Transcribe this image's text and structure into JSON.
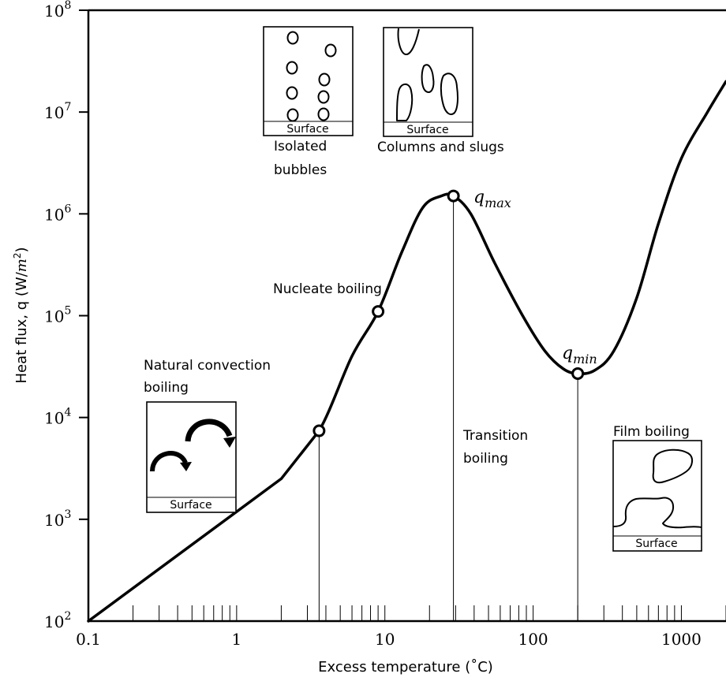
{
  "chart_data": {
    "type": "line",
    "xscale": "log",
    "yscale": "log",
    "xlim": [
      0.1,
      2000
    ],
    "ylim": [
      100,
      100000000
    ],
    "xlabel": "Excess temperature (˚C)",
    "ylabel_main": "Heat flux, q (W/",
    "ylabel_unit": "m",
    "ylabel_exp": "2",
    "ylabel_close": ")",
    "x_ticks": [
      {
        "value": 0.1,
        "label": "0.1"
      },
      {
        "value": 1,
        "label": "1"
      },
      {
        "value": 10,
        "label": "10"
      },
      {
        "value": 100,
        "label": "100"
      },
      {
        "value": 1000,
        "label": "1000"
      }
    ],
    "y_ticks": [
      {
        "value": 100,
        "base": "10",
        "exp": "2"
      },
      {
        "value": 1000,
        "base": "10",
        "exp": "3"
      },
      {
        "value": 10000,
        "base": "10",
        "exp": "4"
      },
      {
        "value": 100000,
        "base": "10",
        "exp": "5"
      },
      {
        "value": 1000000,
        "base": "10",
        "exp": "6"
      },
      {
        "value": 10000000,
        "base": "10",
        "exp": "7"
      },
      {
        "value": 100000000,
        "base": "10",
        "exp": "8"
      }
    ],
    "series": [
      {
        "points": [
          [
            0.1,
            100
          ],
          [
            2.0,
            2500
          ],
          [
            3.6,
            7400
          ],
          [
            6.0,
            40000
          ],
          [
            9.0,
            110000
          ],
          [
            13,
            420000
          ],
          [
            18,
            1150000
          ],
          [
            24,
            1500000
          ],
          [
            29,
            1500000
          ],
          [
            38,
            1000000
          ],
          [
            55,
            330000
          ],
          [
            85,
            100000
          ],
          [
            120,
            45000
          ],
          [
            160,
            30000
          ],
          [
            200,
            27000
          ],
          [
            260,
            29000
          ],
          [
            350,
            45000
          ],
          [
            500,
            150000
          ],
          [
            700,
            800000
          ],
          [
            1000,
            3500000
          ],
          [
            1500,
            10000000
          ],
          [
            2000,
            20000000
          ]
        ]
      }
    ],
    "markers": [
      {
        "x": 3.6,
        "y": 7400
      },
      {
        "x": 9.0,
        "y": 110000
      },
      {
        "x": 29,
        "y": 1500000
      },
      {
        "x": 200,
        "y": 27000
      }
    ],
    "vertical_lines": [
      {
        "x": 3.6,
        "y": 7400
      },
      {
        "x": 29,
        "y": 1500000
      },
      {
        "x": 200,
        "y": 27000
      }
    ],
    "annotations": {
      "q_max": {
        "sym": "q",
        "sub": "max"
      },
      "q_min": {
        "sym": "q",
        "sub": "min"
      },
      "nucleate": "Nucleate boiling",
      "natural_line1": "Natural convection",
      "natural_line2": "boiling",
      "transition_line1": "Transition",
      "transition_line2": "boiling",
      "film": "Film boiling",
      "isolated_line1": "Isolated",
      "isolated_line2": "bubbles",
      "columns": "Columns and slugs",
      "surface": "Surface"
    }
  }
}
